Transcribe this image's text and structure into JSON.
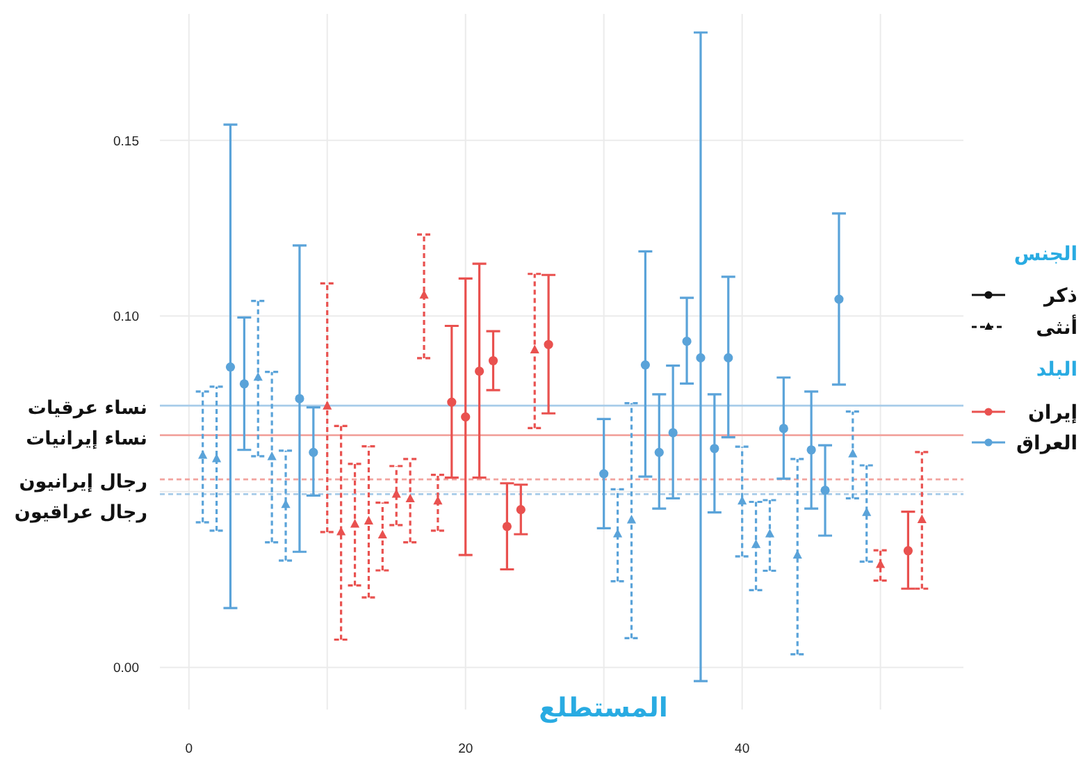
{
  "chart_data": {
    "type": "scatter",
    "xlabel": "المستطلع",
    "legend_title": "الجنس",
    "annotations": [
      "ذكر",
      "أنثى",
      "البلد",
      "إيران",
      "العراق"
    ],
    "xlim": [
      -2.1,
      56
    ],
    "ylim": [
      -0.012,
      0.186
    ],
    "xticks": [
      0,
      {
        "value": 10,
        "label": null
      },
      20,
      {
        "value": 30,
        "label": null
      },
      40,
      {
        "value": 50,
        "label": null
      }
    ],
    "yticks": [
      {
        "value": 0,
        "label": "0.00"
      },
      {
        "value": 0.05,
        "label": null
      },
      {
        "value": 0.1,
        "label": "0.10"
      },
      0.15
    ],
    "grid": true,
    "series": [
      {
        "color": "#5aa3d9",
        "marker": "circle",
        "line_style": "solid",
        "x": [
          3,
          4,
          8,
          9,
          30,
          33,
          34,
          35,
          36,
          37,
          38,
          39,
          43,
          45,
          46,
          47
        ],
        "values": [
          0.0855,
          0.0807,
          0.0765,
          0.0612,
          0.0551,
          0.0861,
          0.0612,
          0.0668,
          0.0928,
          0.0881,
          0.0623,
          0.0881,
          0.068,
          0.0619,
          0.0504,
          0.1048
        ],
        "errors": [
          [
            0.0169,
            0.1545
          ],
          [
            0.0619,
            0.0996
          ],
          [
            0.0329,
            0.1201
          ],
          [
            0.0489,
            0.074
          ],
          [
            0.0396,
            0.0707
          ],
          [
            0.0543,
            0.1184
          ],
          [
            0.0452,
            0.0777
          ],
          [
            0.0481,
            0.0859
          ],
          [
            0.0808,
            0.1052
          ],
          [
            -0.0039,
            0.1807
          ],
          [
            0.0441,
            0.0777
          ],
          [
            0.0655,
            0.1112
          ],
          [
            0.0537,
            0.0825
          ],
          [
            0.0452,
            0.0785
          ],
          [
            0.0375,
            0.0632
          ],
          [
            0.0805,
            0.1292
          ]
        ]
      },
      {
        "color": "#5aa3d9",
        "marker": "triangle",
        "line_style": "dashed",
        "x": [
          1,
          2,
          5,
          6,
          7,
          31,
          32,
          40,
          41,
          42,
          44,
          48,
          49
        ],
        "values": [
          0.0603,
          0.0593,
          0.0825,
          0.0599,
          0.0463,
          0.0379,
          0.0419,
          0.0473,
          0.0349,
          0.0379,
          0.0319,
          0.0607,
          0.044
        ],
        "errors": [
          [
            0.0413,
            0.0785
          ],
          [
            0.0389,
            0.0799
          ],
          [
            0.0601,
            0.1043
          ],
          [
            0.0356,
            0.0841
          ],
          [
            0.0304,
            0.0617
          ],
          [
            0.0245,
            0.0507
          ],
          [
            0.0083,
            0.0752
          ],
          [
            0.0316,
            0.0628
          ],
          [
            0.022,
            0.0471
          ],
          [
            0.0275,
            0.0476
          ],
          [
            0.0037,
            0.0593
          ],
          [
            0.0481,
            0.0728
          ],
          [
            0.0301,
            0.0575
          ]
        ]
      },
      {
        "color": "#e9514f",
        "marker": "circle",
        "line_style": "solid",
        "x": [
          19,
          20,
          21,
          22,
          23,
          24,
          26,
          52
        ],
        "values": [
          0.0755,
          0.0713,
          0.0843,
          0.0873,
          0.0401,
          0.0449,
          0.0919,
          0.0332
        ],
        "errors": [
          [
            0.054,
            0.0972
          ],
          [
            0.032,
            0.1107
          ],
          [
            0.054,
            0.1149
          ],
          [
            0.0789,
            0.0957
          ],
          [
            0.0279,
            0.0524
          ],
          [
            0.0379,
            0.052
          ],
          [
            0.0723,
            0.1117
          ],
          [
            0.0224,
            0.0443
          ]
        ]
      },
      {
        "color": "#e9514f",
        "marker": "triangle",
        "line_style": "dashed",
        "x": [
          10,
          11,
          12,
          13,
          14,
          15,
          16,
          17,
          18,
          25,
          50,
          53
        ],
        "values": [
          0.0743,
          0.0385,
          0.0407,
          0.0416,
          0.0376,
          0.0492,
          0.0479,
          0.1059,
          0.0473,
          0.0903,
          0.0292,
          0.042
        ],
        "errors": [
          [
            0.0385,
            0.1093
          ],
          [
            0.0079,
            0.0687
          ],
          [
            0.0233,
            0.0579
          ],
          [
            0.0199,
            0.0629
          ],
          [
            0.0276,
            0.0469
          ],
          [
            0.0405,
            0.0573
          ],
          [
            0.0356,
            0.0593
          ],
          [
            0.088,
            0.1232
          ],
          [
            0.0389,
            0.0548
          ],
          [
            0.0681,
            0.112
          ],
          [
            0.0247,
            0.0333
          ],
          [
            0.0224,
            0.0613
          ]
        ]
      }
    ],
    "ref_lines": [
      {
        "axis": "y",
        "value": 0.0745,
        "label": "نساء عرقيات",
        "color": "#a6cbe9",
        "line_style": "solid"
      },
      {
        "axis": "y",
        "value": 0.0661,
        "label": "نساء إيرانيات",
        "color": "#f2a39e",
        "line_style": "solid"
      },
      {
        "axis": "y",
        "value": 0.0535,
        "label": "رجال إيرانيون",
        "color": "#f2a39e",
        "line_style": "dashed"
      },
      {
        "axis": "y",
        "value": 0.0493,
        "label": "رجال عراقيون",
        "color": "#a6cbe9",
        "line_style": "dashed"
      }
    ]
  }
}
